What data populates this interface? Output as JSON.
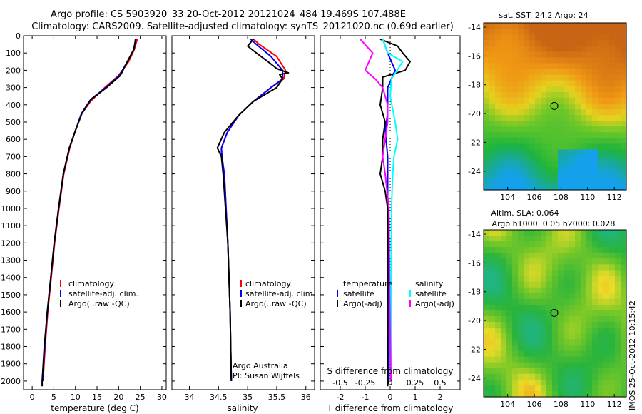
{
  "title_line1": "Argo profile: CS 5903920_33 20-Oct-2012 20121024_484 19.469S 107.488E",
  "title_line2": "Climatology: CARS2009. Satellite-adjusted climatology: synTS_20121020.nc (0.69d earlier)",
  "stamp": "IMOS 25-Oct-2012 10:15:42",
  "colors": {
    "climatology": "#ff0000",
    "satellite": "#0000ff",
    "argo": "#000000",
    "sat_salinity": "#00ffff",
    "argo_salinity": "#ff00ff"
  },
  "chart_data": [
    {
      "type": "line",
      "xlabel": "temperature (deg C)",
      "xlim": [
        -2,
        31
      ],
      "ylim": [
        0,
        2050
      ],
      "y_reversed": true,
      "xticks": [
        0,
        5,
        10,
        15,
        20,
        25,
        30
      ],
      "yticks": [
        0,
        100,
        200,
        300,
        400,
        500,
        600,
        700,
        800,
        900,
        1000,
        1100,
        1200,
        1300,
        1400,
        1500,
        1600,
        1700,
        1800,
        1900,
        2000
      ],
      "legend": [
        "climatology",
        "satellite-adj. clim.",
        "Argo(..raw -QC)"
      ],
      "series": [
        {
          "name": "climatology",
          "color": "red",
          "points": [
            [
              24.3,
              20
            ],
            [
              23.6,
              80
            ],
            [
              22.3,
              150
            ],
            [
              20,
              230
            ],
            [
              16.8,
              300
            ],
            [
              13.5,
              380
            ],
            [
              11.5,
              450
            ],
            [
              10,
              550
            ],
            [
              8.7,
              650
            ],
            [
              7.3,
              800
            ],
            [
              6.2,
              1000
            ],
            [
              5.2,
              1200
            ],
            [
              4.4,
              1400
            ],
            [
              3.6,
              1600
            ],
            [
              3,
              1800
            ],
            [
              2.5,
              2000
            ]
          ]
        },
        {
          "name": "satellite-adj. clim.",
          "color": "blue",
          "points": [
            [
              24,
              20
            ],
            [
              23.5,
              80
            ],
            [
              22,
              150
            ],
            [
              20.2,
              230
            ],
            [
              17,
              300
            ],
            [
              13.5,
              370
            ],
            [
              11.4,
              450
            ],
            [
              10,
              550
            ],
            [
              8.6,
              650
            ],
            [
              7.2,
              800
            ],
            [
              6.1,
              1000
            ],
            [
              5.1,
              1200
            ],
            [
              4.3,
              1400
            ],
            [
              3.5,
              1600
            ],
            [
              2.9,
              1800
            ],
            [
              2.4,
              2000
            ]
          ]
        },
        {
          "name": "Argo(..raw -QC)",
          "color": "black",
          "points": [
            [
              23.9,
              20
            ],
            [
              23.5,
              80
            ],
            [
              22,
              150
            ],
            [
              20.4,
              230
            ],
            [
              17.2,
              300
            ],
            [
              13.6,
              370
            ],
            [
              11.5,
              450
            ],
            [
              10,
              550
            ],
            [
              8.6,
              650
            ],
            [
              7.2,
              800
            ],
            [
              6.1,
              1000
            ],
            [
              5.1,
              1200
            ],
            [
              4.3,
              1400
            ],
            [
              3.5,
              1600
            ],
            [
              2.8,
              1800
            ],
            [
              2.3,
              2000
            ],
            [
              2.3,
              2030
            ]
          ]
        }
      ]
    },
    {
      "type": "line",
      "xlabel": "salinity",
      "xlim": [
        33.7,
        36.15
      ],
      "ylim": [
        0,
        2050
      ],
      "y_reversed": true,
      "xticks": [
        34,
        34.5,
        35,
        35.5,
        36
      ],
      "legend": [
        "climatology",
        "satellite-adj. clim.",
        "Argo(..raw -QC)"
      ],
      "annotation": [
        "Argo Australia",
        "PI: Susan Wijffels"
      ],
      "series": [
        {
          "name": "climatology",
          "color": "red",
          "points": [
            [
              35.1,
              20
            ],
            [
              35.2,
              50
            ],
            [
              35.5,
              120
            ],
            [
              35.65,
              200
            ],
            [
              35.62,
              250
            ],
            [
              35.4,
              300
            ],
            [
              35.1,
              380
            ],
            [
              34.85,
              460
            ],
            [
              34.65,
              560
            ],
            [
              34.55,
              650
            ],
            [
              34.55,
              700
            ],
            [
              34.6,
              800
            ],
            [
              34.63,
              1000
            ],
            [
              34.66,
              1200
            ],
            [
              34.68,
              1400
            ],
            [
              34.7,
              1600
            ],
            [
              34.71,
              1800
            ],
            [
              34.72,
              2000
            ]
          ]
        },
        {
          "name": "satellite-adj. clim.",
          "color": "blue",
          "points": [
            [
              35.05,
              20
            ],
            [
              35.15,
              50
            ],
            [
              35.4,
              120
            ],
            [
              35.6,
              200
            ],
            [
              35.6,
              250
            ],
            [
              35.4,
              300
            ],
            [
              35.1,
              380
            ],
            [
              34.85,
              460
            ],
            [
              34.65,
              560
            ],
            [
              34.55,
              650
            ],
            [
              34.56,
              700
            ],
            [
              34.6,
              800
            ],
            [
              34.63,
              1000
            ],
            [
              34.66,
              1200
            ],
            [
              34.68,
              1400
            ],
            [
              34.7,
              1600
            ],
            [
              34.71,
              1800
            ],
            [
              34.72,
              2000
            ]
          ]
        },
        {
          "name": "Argo(..raw -QC)",
          "color": "black",
          "points": [
            [
              35.1,
              20
            ],
            [
              35.0,
              60
            ],
            [
              35.15,
              100
            ],
            [
              35.35,
              150
            ],
            [
              35.5,
              190
            ],
            [
              35.7,
              215
            ],
            [
              35.55,
              225
            ],
            [
              35.6,
              250
            ],
            [
              35.5,
              300
            ],
            [
              35.1,
              380
            ],
            [
              34.85,
              460
            ],
            [
              34.6,
              560
            ],
            [
              34.48,
              650
            ],
            [
              34.55,
              700
            ],
            [
              34.58,
              800
            ],
            [
              34.62,
              1000
            ],
            [
              34.66,
              1200
            ],
            [
              34.68,
              1400
            ],
            [
              34.7,
              1600
            ],
            [
              34.71,
              1800
            ],
            [
              34.72,
              2000
            ]
          ]
        }
      ]
    },
    {
      "type": "line",
      "xlabel": "T difference from climatology",
      "xlabel_top": "S difference from climatology",
      "xlim": [
        -2.8,
        2.8
      ],
      "ylim": [
        0,
        2050
      ],
      "y_reversed": true,
      "xticks": [
        -2,
        -1,
        0,
        1,
        2
      ],
      "xticks_top": [
        "-0.5",
        "-0.25",
        "0",
        "0.25",
        "0.5"
      ],
      "legend_temperature": [
        "temperature",
        "satellite",
        "Argo(-adj)"
      ],
      "legend_salinity": [
        "salinity",
        "satellite",
        "Argo(-adj)"
      ],
      "series": [
        {
          "name": "temperature satellite",
          "color": "blue",
          "points": [
            [
              -0.3,
              20
            ],
            [
              -0.1,
              100
            ],
            [
              0.2,
              200
            ],
            [
              -0.1,
              300
            ],
            [
              -0.1,
              450
            ],
            [
              -0.2,
              550
            ],
            [
              -0.1,
              700
            ],
            [
              -0.1,
              1000
            ],
            [
              -0.05,
              1500
            ],
            [
              -0.05,
              2000
            ]
          ]
        },
        {
          "name": "temperature Argo(-adj)",
          "color": "black",
          "points": [
            [
              -0.4,
              20
            ],
            [
              0.3,
              60
            ],
            [
              0.5,
              100
            ],
            [
              0.8,
              150
            ],
            [
              0.6,
              200
            ],
            [
              -0.3,
              240
            ],
            [
              -0.3,
              300
            ],
            [
              -0.4,
              400
            ],
            [
              -0.2,
              500
            ],
            [
              -0.3,
              600
            ],
            [
              -0.3,
              700
            ],
            [
              -0.4,
              800
            ],
            [
              -0.2,
              900
            ],
            [
              -0.1,
              1000
            ],
            [
              -0.1,
              1200
            ],
            [
              -0.1,
              1500
            ],
            [
              -0.1,
              1800
            ],
            [
              -0.1,
              2030
            ]
          ]
        },
        {
          "name": "salinity satellite",
          "color": "cyan",
          "points": [
            [
              -0.3,
              20
            ],
            [
              -0.1,
              100
            ],
            [
              0.5,
              150
            ],
            [
              0.05,
              250
            ],
            [
              0.0,
              350
            ],
            [
              0.2,
              500
            ],
            [
              0.3,
              600
            ],
            [
              0.15,
              700
            ],
            [
              0.1,
              800
            ],
            [
              0.05,
              1000
            ],
            [
              0.03,
              1500
            ],
            [
              0.03,
              2000
            ]
          ]
        },
        {
          "name": "salinity Argo(-adj)",
          "color": "magenta",
          "points": [
            [
              -1.2,
              20
            ],
            [
              -0.7,
              100
            ],
            [
              -1.0,
              200
            ],
            [
              -0.6,
              250
            ],
            [
              -0.3,
              300
            ],
            [
              -0.1,
              400
            ],
            [
              -0.1,
              500
            ],
            [
              -0.2,
              600
            ],
            [
              -0.3,
              700
            ],
            [
              -0.2,
              800
            ],
            [
              -0.05,
              1000
            ],
            [
              -0.02,
              1500
            ],
            [
              0.03,
              2000
            ]
          ]
        }
      ]
    },
    {
      "type": "heatmap",
      "title": "sat. SST: 24.2 Argo: 24",
      "xticks": [
        104,
        106,
        108,
        110,
        112
      ],
      "yticks": [
        -14,
        -16,
        -18,
        -20,
        -22,
        -24
      ],
      "xlim": [
        102.2,
        112.9
      ],
      "ylim": [
        -25.3,
        -13.7
      ],
      "marker": [
        107.5,
        -19.47
      ]
    },
    {
      "type": "heatmap",
      "title": "Altim. SLA: 0.064",
      "subtitle": "Argo h1000: 0.05 h2000: 0.028",
      "xticks": [
        104,
        106,
        108,
        110,
        112
      ],
      "yticks": [
        -14,
        -16,
        -18,
        -20,
        -22,
        -24
      ],
      "xlim": [
        102.2,
        112.9
      ],
      "ylim": [
        -25.3,
        -13.7
      ],
      "marker": [
        107.5,
        -19.47
      ]
    }
  ]
}
